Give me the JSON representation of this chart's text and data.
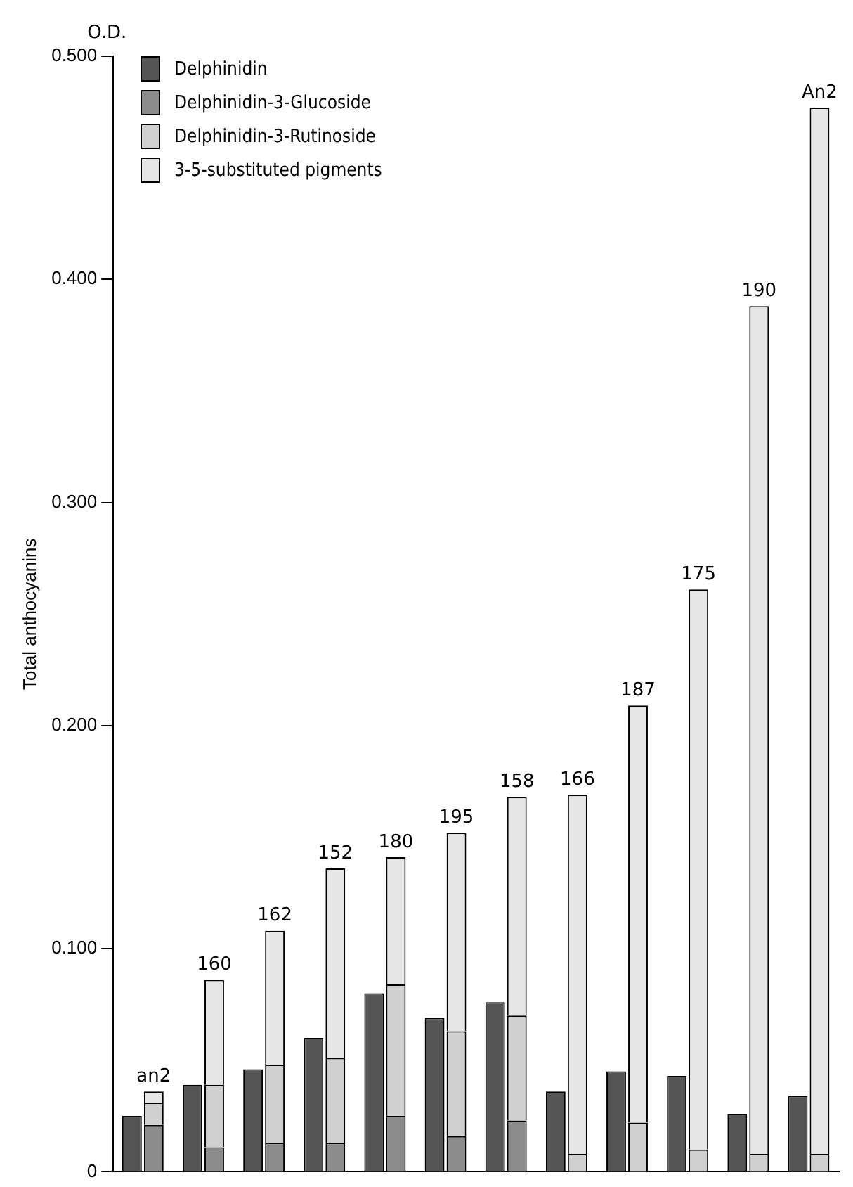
{
  "chart_data": {
    "type": "bar",
    "ylabel": "Total anthocyanins",
    "annotations": [
      "O.D."
    ],
    "categories": [
      "an2",
      "160",
      "162",
      "152",
      "180",
      "195",
      "158",
      "166",
      "187",
      "175",
      "190",
      "An2"
    ],
    "series": [
      {
        "name": "Delphinidin",
        "color": "#555555",
        "values": [
          0.025,
          0.039,
          0.046,
          0.06,
          0.08,
          0.069,
          0.076,
          0.036,
          0.045,
          0.043,
          0.026,
          0.034
        ]
      },
      {
        "name": "Delphinidin-3-Glucoside",
        "color": "#8c8c8c",
        "base": [
          0,
          0,
          0,
          0,
          0,
          0,
          0,
          null,
          null,
          null,
          null,
          null
        ],
        "values": [
          0.021,
          0.011,
          0.013,
          0.013,
          0.025,
          0.016,
          0.023,
          null,
          null,
          null,
          null,
          null
        ]
      },
      {
        "name": "Delphinidin-3-Rutinoside",
        "color": "#d0d0d0",
        "base": [
          0.021,
          0.011,
          0.013,
          0.013,
          0.025,
          0.016,
          0.023,
          0,
          0,
          0,
          0,
          0
        ],
        "values": [
          0.01,
          0.028,
          0.035,
          0.038,
          0.059,
          0.047,
          0.047,
          0.008,
          0.022,
          0.01,
          0.008,
          0.008
        ]
      },
      {
        "name": "3-5-substituted pigments",
        "color": "#e6e6e6",
        "base": [
          0.031,
          0.039,
          0.048,
          0.051,
          0.084,
          0.063,
          0.07,
          0.008,
          0.022,
          0.01,
          0.008,
          0.008
        ],
        "values": [
          0.005,
          0.047,
          0.06,
          0.085,
          0.057,
          0.089,
          0.098,
          0.161,
          0.187,
          0.251,
          0.38,
          0.469
        ]
      }
    ],
    "ylim": [
      0,
      0.5
    ],
    "yticks": [
      0,
      {
        "value": 0.1,
        "label": "0.100"
      },
      {
        "value": 0.2,
        "label": "0.200"
      },
      {
        "value": 0.3,
        "label": "0.300"
      },
      {
        "value": 0.4,
        "label": "0.400"
      },
      {
        "value": 0.5,
        "label": "0.500"
      }
    ],
    "grid": false,
    "legend": "top left"
  }
}
